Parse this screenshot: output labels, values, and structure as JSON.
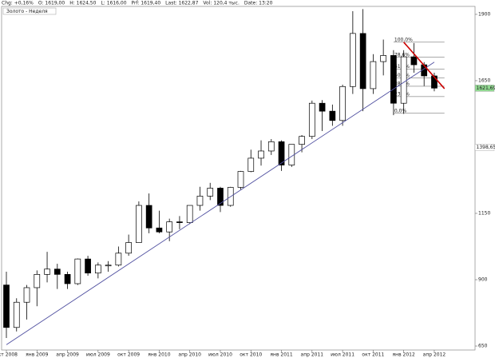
{
  "chart_data": {
    "type": "candlestick",
    "header": [
      "Chg: +0,16%",
      "O: 1619,00",
      "H: 1624,50",
      "L: 1616,00",
      "Prf: 1619,40",
      "Last: 1622,87",
      "Vol: 120,4 тыс.",
      "Date: 13:20"
    ],
    "x": [
      "2008-10",
      "2008-11",
      "2008-12",
      "2009-01",
      "2009-02",
      "2009-03",
      "2009-04",
      "2009-05",
      "2009-06",
      "2009-07",
      "2009-08",
      "2009-09",
      "2009-10",
      "2009-11",
      "2009-12",
      "2010-01",
      "2010-02",
      "2010-03",
      "2010-04",
      "2010-05",
      "2010-06",
      "2010-07",
      "2010-08",
      "2010-09",
      "2010-10",
      "2010-11",
      "2010-12",
      "2011-01",
      "2011-02",
      "2011-03",
      "2011-04",
      "2011-05",
      "2011-06",
      "2011-07",
      "2011-08",
      "2011-09",
      "2011-10",
      "2011-11",
      "2011-12",
      "2012-01",
      "2012-02",
      "2012-03",
      "2012-04"
    ],
    "series": [
      {
        "name": "Золото - Неделя",
        "up_color": "#ffffff",
        "down_color": "#000000",
        "open": [
          880,
          720,
          815,
          870,
          920,
          940,
          920,
          885,
          978,
          925,
          955,
          955,
          1000,
          1040,
          1180,
          1095,
          1080,
          1118,
          1115,
          1180,
          1215,
          1245,
          1180,
          1248,
          1308,
          1358,
          1385,
          1420,
          1332,
          1410,
          1440,
          1565,
          1535,
          1500,
          1628,
          1828,
          1620,
          1722,
          1745,
          1565,
          1740,
          1710,
          1668
        ],
        "high": [
          930,
          830,
          880,
          935,
          1005,
          960,
          930,
          980,
          990,
          965,
          970,
          1025,
          1070,
          1195,
          1225,
          1160,
          1130,
          1140,
          1180,
          1250,
          1265,
          1250,
          1250,
          1310,
          1390,
          1425,
          1430,
          1425,
          1410,
          1445,
          1575,
          1577,
          1560,
          1635,
          1912,
          1920,
          1750,
          1805,
          1765,
          1765,
          1792,
          1720,
          1680
        ],
        "low": [
          680,
          705,
          750,
          800,
          890,
          865,
          865,
          880,
          915,
          905,
          930,
          950,
          990,
          1040,
          1075,
          1075,
          1045,
          1090,
          1110,
          1160,
          1200,
          1155,
          1175,
          1240,
          1305,
          1330,
          1370,
          1310,
          1325,
          1380,
          1430,
          1460,
          1480,
          1480,
          1600,
          1535,
          1600,
          1670,
          1520,
          1525,
          1680,
          1630,
          1610
        ],
        "close": [
          720,
          815,
          870,
          920,
          940,
          920,
          885,
          978,
          925,
          955,
          955,
          1000,
          1040,
          1180,
          1095,
          1080,
          1118,
          1115,
          1180,
          1215,
          1245,
          1180,
          1248,
          1308,
          1358,
          1385,
          1420,
          1332,
          1410,
          1440,
          1565,
          1535,
          1500,
          1628,
          1828,
          1620,
          1722,
          1745,
          1565,
          1740,
          1710,
          1668,
          1622
        ]
      }
    ],
    "xlim": [
      "2008-10",
      "2012-08"
    ],
    "xticks": [
      {
        "value": "2008-10",
        "label": "окт 2008"
      },
      {
        "value": "2009-01",
        "label": "янв 2009"
      },
      {
        "value": "2009-04",
        "label": "апр 2009"
      },
      {
        "value": "2009-07",
        "label": "июл 2009"
      },
      {
        "value": "2009-10",
        "label": "окт 2009"
      },
      {
        "value": "2010-01",
        "label": "янв 2010"
      },
      {
        "value": "2010-04",
        "label": "апр 2010"
      },
      {
        "value": "2010-07",
        "label": "июл 2010"
      },
      {
        "value": "2010-10",
        "label": "окт 2010"
      },
      {
        "value": "2011-01",
        "label": "янв 2011"
      },
      {
        "value": "2011-04",
        "label": "апр 2011"
      },
      {
        "value": "2011-07",
        "label": "июл 2011"
      },
      {
        "value": "2011-10",
        "label": "окт 2011"
      },
      {
        "value": "2012-01",
        "label": "янв 2012"
      },
      {
        "value": "2012-04",
        "label": "апр 2012"
      }
    ],
    "ylim": [
      635,
      1930
    ],
    "yticks": [
      650,
      900,
      1150,
      1650,
      1900
    ],
    "price_labels": [
      {
        "value": 1621.69,
        "label": "1621,69",
        "color": "#90d890"
      },
      {
        "value": 1398.65,
        "label": "1398,65",
        "color": "#ffffff"
      }
    ],
    "lines": [
      {
        "color": "#5050a0",
        "x": [
          "2008-10",
          "2012-04"
        ],
        "y": [
          655,
          1720
        ]
      },
      {
        "color": "#cc0000",
        "x": [
          "2012-01",
          "2012-05"
        ],
        "y": [
          1795,
          1620
        ]
      }
    ],
    "fibonacci": {
      "color": "#555555",
      "x": [
        "2011-12",
        "2012-05"
      ],
      "levels": [
        {
          "value": 1795,
          "label": "100,0%"
        },
        {
          "value": 1738,
          "label": "78,6%"
        },
        {
          "value": 1693,
          "label": "61,8%"
        },
        {
          "value": 1661,
          "label": "50,0%"
        },
        {
          "value": 1629,
          "label": "38,2%"
        },
        {
          "value": 1590,
          "label": "23,6%"
        },
        {
          "value": 1527,
          "label": "0,0%"
        }
      ]
    }
  }
}
